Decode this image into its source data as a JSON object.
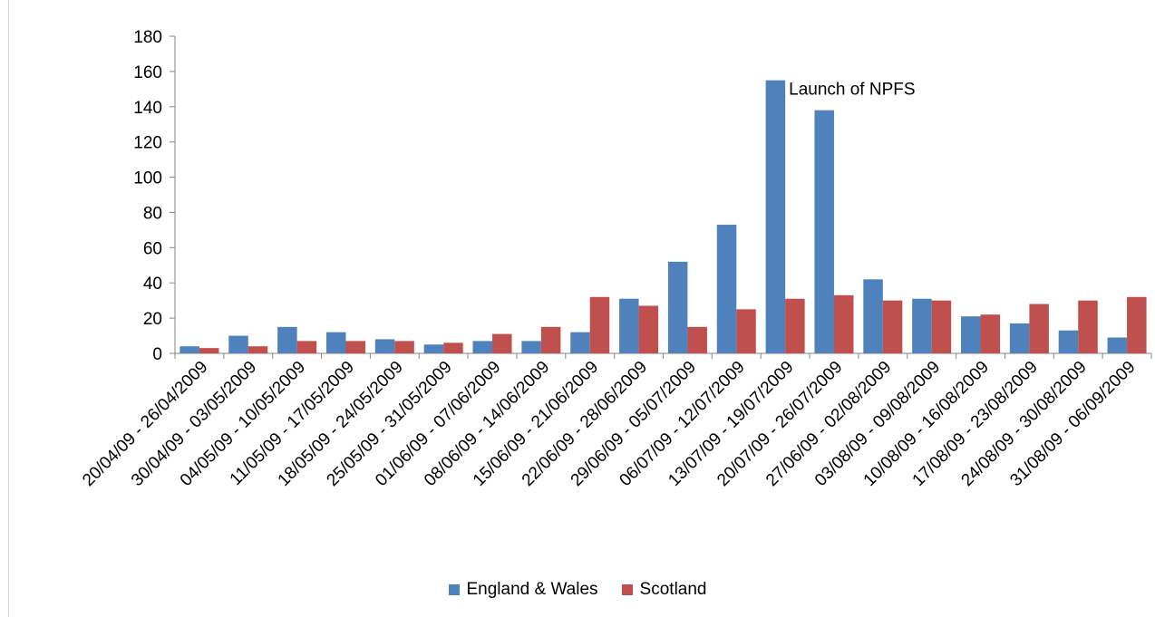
{
  "chart_data": {
    "type": "bar",
    "categories": [
      "20/04/09 - 26/04/2009",
      "30/04/09 - 03/05/2009",
      "04/05/09 - 10/05/2009",
      "11/05/09 - 17/05/2009",
      "18/05/09 - 24/05/2009",
      "25/05/09 - 31/05/2009",
      "01/06/09 - 07/06/2009",
      "08/06/09 - 14/06/2009",
      "15/06/09 - 21/06/2009",
      "22/06/09 - 28/06/2009",
      "29/06/09 - 05/07/2009",
      "06/07/09 - 12/07/2009",
      "13/07/09 - 19/07/2009",
      "20/07/09 - 26/07/2009",
      "27/06/09 - 02/08/2009",
      "03/08/09 - 09/08/2009",
      "10/08/09 - 16/08/2009",
      "17/08/09 - 23/08/2009",
      "24/08/09 - 30/08/2009",
      "31/08/09 - 06/09/2009"
    ],
    "series": [
      {
        "name": "England & Wales",
        "color": "#4F81BD",
        "values": [
          4,
          10,
          15,
          12,
          8,
          5,
          7,
          7,
          12,
          31,
          52,
          73,
          155,
          138,
          42,
          31,
          21,
          17,
          13,
          9
        ]
      },
      {
        "name": "Scotland",
        "color": "#C0504D",
        "values": [
          3,
          4,
          7,
          7,
          7,
          6,
          11,
          15,
          32,
          27,
          15,
          25,
          31,
          33,
          30,
          30,
          22,
          28,
          30,
          32
        ]
      }
    ],
    "yticks": [
      0,
      20,
      40,
      60,
      80,
      100,
      120,
      140,
      160,
      180
    ],
    "ylim": [
      0,
      180
    ],
    "annotations": [
      {
        "text": "Launch of NPFS",
        "category_index": 12,
        "series_index": 0
      }
    ],
    "grid": false,
    "legend_position": "bottom"
  }
}
